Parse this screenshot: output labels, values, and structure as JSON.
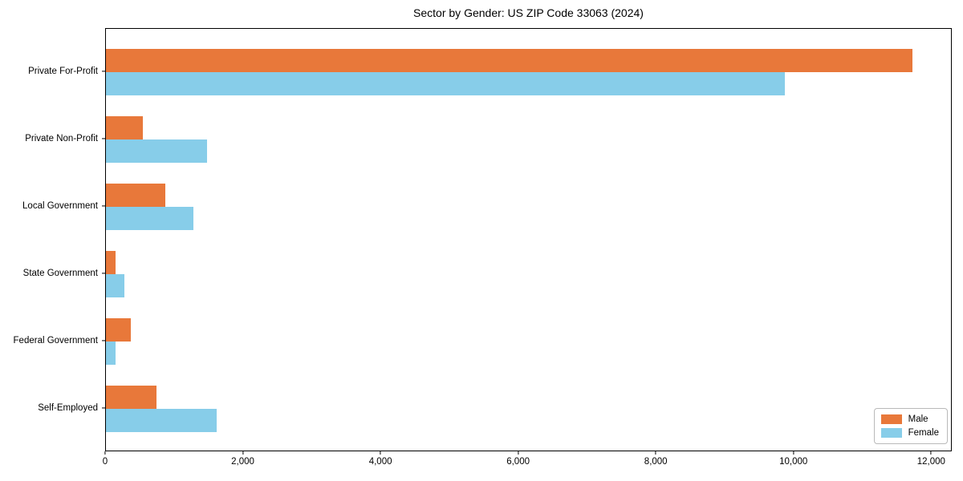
{
  "chart_data": {
    "type": "bar",
    "orientation": "horizontal",
    "title": "Sector by Gender: US ZIP Code 33063 (2024)",
    "xlabel": "",
    "ylabel": "",
    "categories": [
      "Private For-Profit",
      "Private Non-Profit",
      "Local Government",
      "State Government",
      "Federal Government",
      "Self-Employed"
    ],
    "series": [
      {
        "name": "Male",
        "color": "#E8783A",
        "values": [
          11715,
          530,
          865,
          145,
          365,
          735
        ]
      },
      {
        "name": "Female",
        "color": "#87CDE9",
        "values": [
          9860,
          1465,
          1265,
          265,
          135,
          1610
        ]
      }
    ],
    "xlim": [
      0,
      12300
    ],
    "x_ticks": [
      0,
      2000,
      4000,
      6000,
      8000,
      10000,
      12000
    ],
    "x_tick_labels": [
      "0",
      "2,000",
      "4,000",
      "6,000",
      "8,000",
      "10,000",
      "12,000"
    ],
    "legend_position": "lower right",
    "grid": false,
    "background_color": "#ffffff",
    "spine_color": "#000000"
  }
}
